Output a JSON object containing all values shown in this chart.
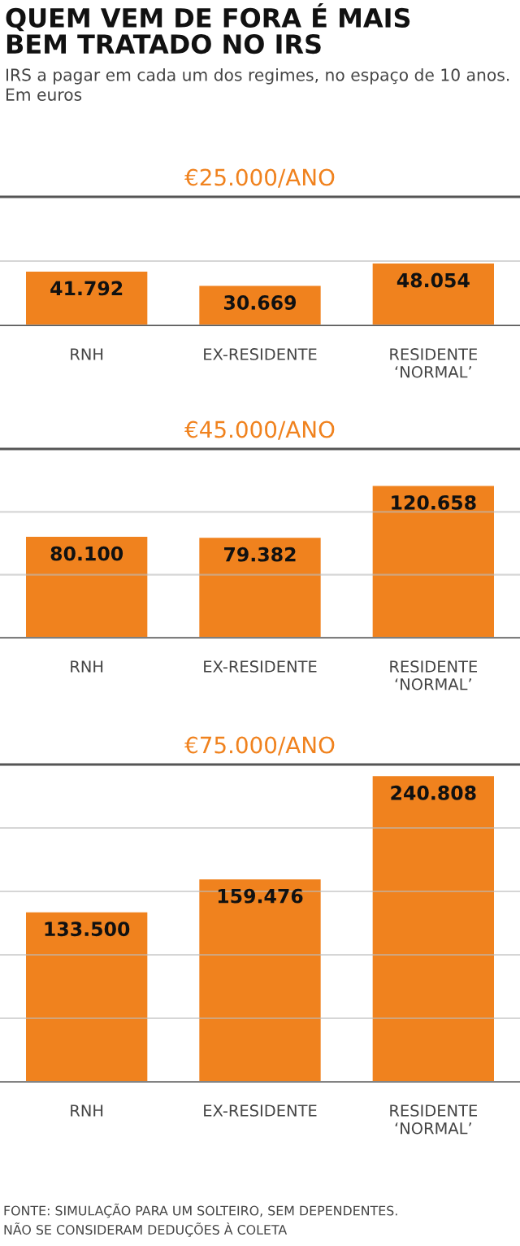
{
  "chart_data": [
    {
      "type": "bar",
      "title": "QUEM VEM DE FORA É MAIS\nBEM TRATADO NO IRS",
      "subtitle": "IRS a pagar em cada um dos regimes, no espaço de 10 anos.\nEm euros",
      "annotations": [
        "€25.000/ANO"
      ],
      "categories": [
        "RNH",
        "EX-RESIDENTE",
        "RESIDENTE\n‘NORMAL’"
      ],
      "values": [
        41792,
        30669,
        48054
      ],
      "value_labels": [
        "41.792",
        "30.669",
        "48.054"
      ],
      "color": "#f0821e",
      "ylim": [
        0,
        100000
      ],
      "yticks": [
        {
          "value": 0,
          "label": null
        },
        {
          "value": 50000,
          "label": null
        }
      ],
      "grid": "y",
      "tick_labels": "x"
    },
    {
      "type": "bar",
      "title": "€45.000/ANO",
      "categories": [
        "RNH",
        "EX-RESIDENTE",
        "RESIDENTE\n‘NORMAL’"
      ],
      "values": [
        80100,
        79382,
        120658
      ],
      "value_labels": [
        "80.100",
        "79.382",
        "120.658"
      ],
      "color": "#f0821e",
      "ylim": [
        0,
        150000
      ],
      "yticks": [
        {
          "value": 0,
          "label": null
        },
        {
          "value": 50000,
          "label": null
        },
        {
          "value": 100000,
          "label": null
        }
      ],
      "grid": "y",
      "tick_labels": "x"
    },
    {
      "type": "bar",
      "title": "€75.000/ANO",
      "categories": [
        "RNH",
        "EX-RESIDENTE",
        "RESIDENTE\n‘NORMAL’"
      ],
      "values": [
        133500,
        159476,
        240808
      ],
      "value_labels": [
        "133.500",
        "159.476",
        "240.808"
      ],
      "color": "#f0821e",
      "ylim": [
        0,
        250000
      ],
      "yticks": [
        {
          "value": 0,
          "label": null
        },
        {
          "value": 50000,
          "label": null
        },
        {
          "value": 100000,
          "label": null
        },
        {
          "value": 150000,
          "label": null
        },
        {
          "value": 200000,
          "label": null
        }
      ],
      "grid": "y",
      "tick_labels": "x",
      "annotations": [
        "FONTE: SIMULAÇÃO PARA UM SOLTEIRO, SEM DEPENDENTES.\nNÃO SE CONSIDERAM DEDUÇÕES À COLETA"
      ]
    }
  ]
}
